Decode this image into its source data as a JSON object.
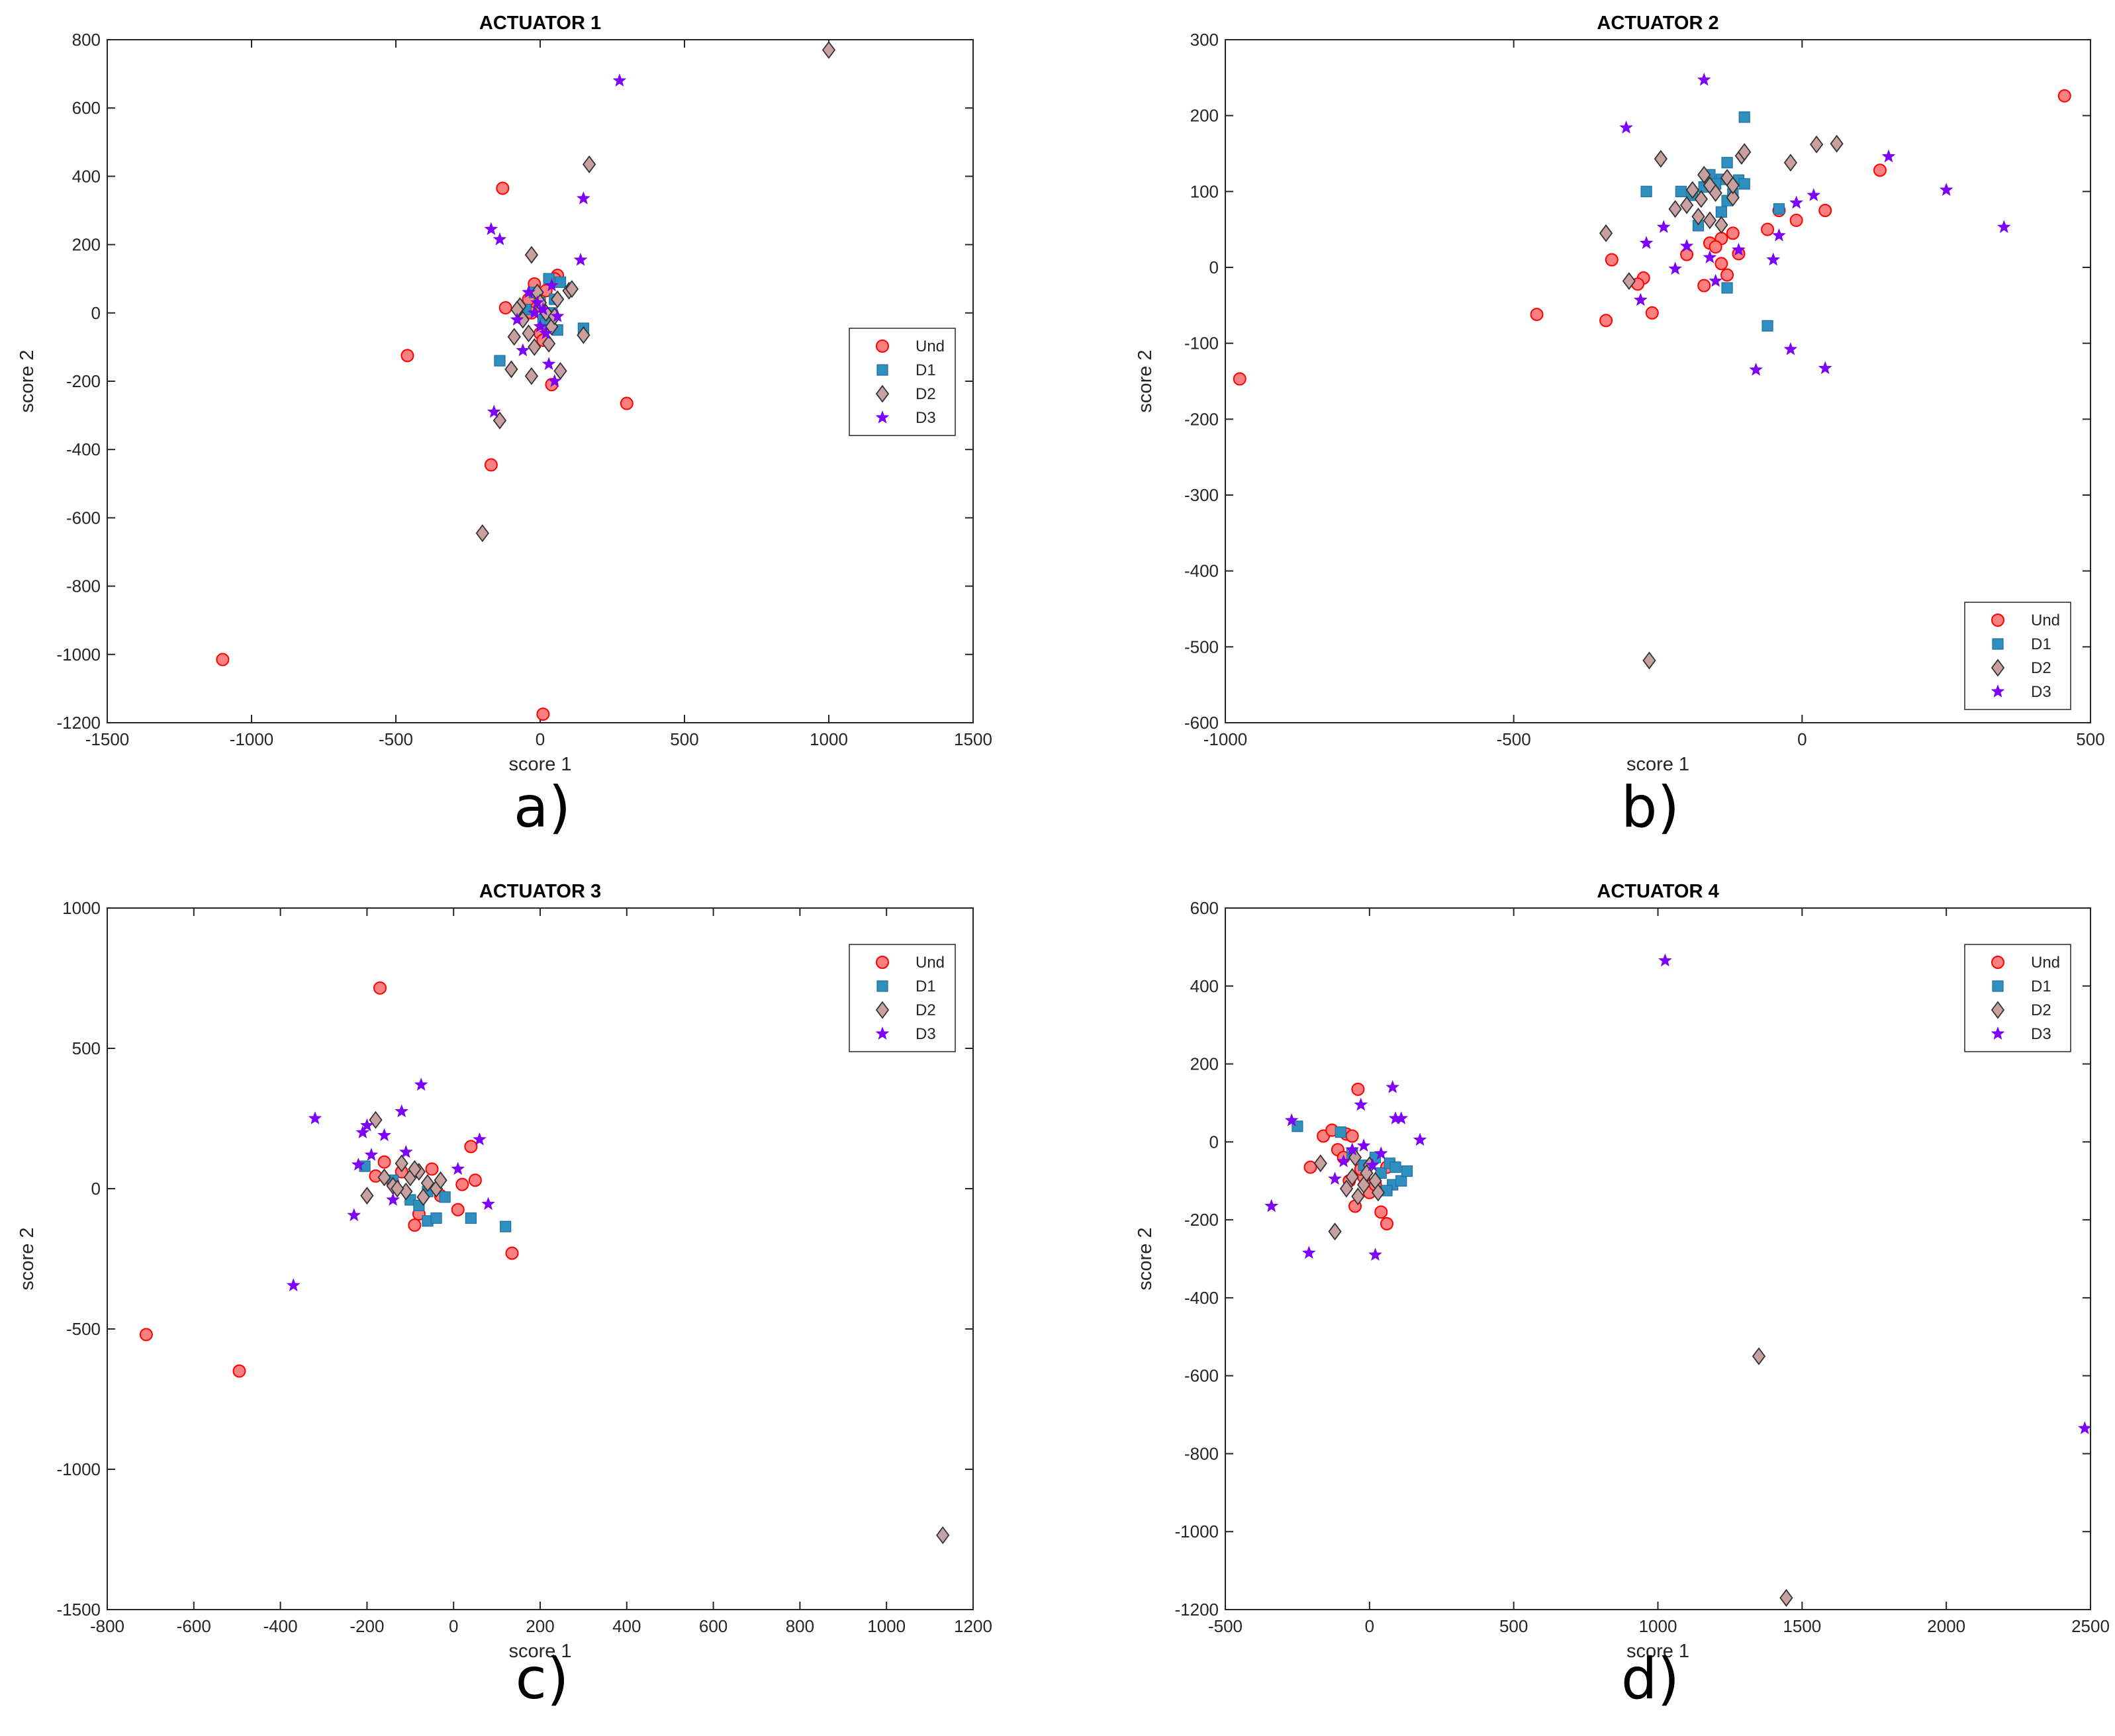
{
  "colors": {
    "Und": {
      "fill": "#ff8080",
      "stroke": "#ff0000"
    },
    "D1": {
      "fill": "#2f8fbf",
      "stroke": "#1f6f9f"
    },
    "D2": {
      "fill": "#c8a0a0",
      "stroke": "#333333"
    },
    "D3": {
      "fill": "#8000ff",
      "stroke": "#7000e0"
    }
  },
  "chart_data": [
    {
      "type": "scatter",
      "title": "ACTUATOR 1",
      "panel_label": "a)",
      "xlabel": "score 1",
      "ylabel": "score 2",
      "xlim": [
        -1500,
        1500
      ],
      "ylim": [
        -1200,
        800
      ],
      "xticks": [
        -1500,
        -1000,
        -500,
        0,
        500,
        1000,
        1500
      ],
      "yticks": [
        -1200,
        -1000,
        -800,
        -600,
        -400,
        -200,
        0,
        200,
        400,
        600,
        800
      ],
      "legend_position": "right-middle",
      "series": [
        {
          "name": "Und",
          "marker": "circle",
          "x": [
            -1100,
            -460,
            -130,
            300,
            -170,
            -120,
            10,
            40,
            60,
            -20,
            20,
            -10,
            30,
            -40,
            0,
            50,
            -30,
            10
          ],
          "y": [
            -1015,
            -125,
            365,
            -265,
            -445,
            15,
            -1175,
            -210,
            110,
            85,
            65,
            20,
            -30,
            40,
            -60,
            100,
            0,
            -80
          ]
        },
        {
          "name": "D1",
          "marker": "square",
          "x": [
            -140,
            30,
            50,
            150,
            60,
            -20,
            10,
            40,
            -50,
            20,
            0,
            70
          ],
          "y": [
            -140,
            100,
            40,
            -45,
            -50,
            60,
            -20,
            0,
            10,
            -30,
            30,
            90
          ]
        },
        {
          "name": "D2",
          "marker": "diamond",
          "x": [
            1000,
            170,
            -200,
            -140,
            -30,
            -30,
            -100,
            70,
            100,
            60,
            150,
            -90,
            -60,
            -20,
            -70,
            20,
            40,
            -10,
            -40,
            0,
            50,
            -80,
            30,
            110
          ],
          "y": [
            770,
            435,
            -645,
            -315,
            -185,
            170,
            -165,
            -170,
            65,
            40,
            -65,
            -70,
            -20,
            -100,
            20,
            0,
            -40,
            60,
            -60,
            30,
            -10,
            10,
            -90,
            70
          ]
        },
        {
          "name": "D3",
          "marker": "star",
          "x": [
            275,
            -170,
            -140,
            150,
            140,
            -160,
            30,
            50,
            -60,
            -10,
            20,
            -40,
            0,
            60,
            -80,
            40,
            -20,
            10
          ],
          "y": [
            680,
            245,
            215,
            335,
            155,
            -290,
            -150,
            -200,
            -110,
            30,
            -60,
            60,
            -40,
            -10,
            -20,
            80,
            0,
            10
          ]
        }
      ]
    },
    {
      "type": "scatter",
      "title": "ACTUATOR 2",
      "panel_label": "b)",
      "xlabel": "score 1",
      "ylabel": "score 2",
      "xlim": [
        -1000,
        500
      ],
      "ylim": [
        -600,
        300
      ],
      "xticks": [
        -1000,
        -500,
        0,
        500
      ],
      "yticks": [
        -600,
        -500,
        -400,
        -300,
        -200,
        -100,
        0,
        100,
        200,
        300
      ],
      "legend_position": "bottom-right",
      "series": [
        {
          "name": "Und",
          "marker": "circle",
          "x": [
            -975,
            -460,
            -340,
            -330,
            -275,
            -285,
            -260,
            -200,
            -170,
            -160,
            -140,
            -130,
            -120,
            -110,
            -140,
            -150,
            -60,
            -40,
            -10,
            40,
            135,
            455
          ],
          "y": [
            -147,
            -62,
            -70,
            10,
            -14,
            -22,
            -60,
            17,
            -24,
            32,
            5,
            -10,
            45,
            18,
            38,
            27,
            50,
            75,
            62,
            75,
            128,
            226
          ]
        },
        {
          "name": "D1",
          "marker": "square",
          "x": [
            -100,
            -270,
            -60,
            -40,
            -130,
            -210,
            -160,
            -140,
            -120,
            -180,
            -150,
            -110,
            -170,
            -130,
            -190,
            -140,
            -100,
            -130
          ],
          "y": [
            198,
            100,
            -77,
            77,
            -27,
            100,
            122,
            116,
            97,
            55,
            110,
            115,
            106,
            138,
            95,
            73,
            110,
            88
          ]
        },
        {
          "name": "D2",
          "marker": "diamond",
          "x": [
            -265,
            -340,
            -300,
            -245,
            -220,
            -190,
            -175,
            -160,
            -150,
            -130,
            -120,
            -105,
            -100,
            25,
            60,
            -20,
            -180,
            -200,
            -140,
            -170,
            -120,
            -160
          ],
          "y": [
            -518,
            45,
            -18,
            143,
            77,
            102,
            90,
            108,
            98,
            118,
            92,
            147,
            152,
            162,
            163,
            138,
            67,
            82,
            56,
            122,
            108,
            62
          ]
        },
        {
          "name": "D3",
          "marker": "star",
          "x": [
            -170,
            -305,
            150,
            250,
            350,
            -20,
            40,
            -80,
            -40,
            -280,
            -240,
            -200,
            -160,
            -110,
            -270,
            20,
            -10,
            -50,
            -150,
            -220
          ],
          "y": [
            247,
            184,
            146,
            102,
            53,
            -108,
            -133,
            -135,
            42,
            -43,
            53,
            28,
            13,
            23,
            32,
            95,
            85,
            10,
            -18,
            -2
          ]
        }
      ]
    },
    {
      "type": "scatter",
      "title": "ACTUATOR 3",
      "panel_label": "c)",
      "xlabel": "score 1",
      "ylabel": "score 2",
      "xlim": [
        -800,
        1200
      ],
      "ylim": [
        -1500,
        1000
      ],
      "xticks": [
        -800,
        -600,
        -400,
        -200,
        0,
        200,
        400,
        600,
        800,
        1000,
        1200
      ],
      "yticks": [
        -1500,
        -1000,
        -500,
        0,
        500,
        1000
      ],
      "legend_position": "top-right",
      "series": [
        {
          "name": "Und",
          "marker": "circle",
          "x": [
            -710,
            -495,
            -170,
            -180,
            -160,
            40,
            50,
            135,
            20,
            10,
            -90,
            -80,
            -50,
            -30,
            -140,
            -120
          ],
          "y": [
            -520,
            -650,
            715,
            45,
            95,
            150,
            30,
            -230,
            15,
            -75,
            -130,
            -90,
            70,
            -25,
            20,
            60
          ]
        },
        {
          "name": "D1",
          "marker": "square",
          "x": [
            -205,
            -60,
            -40,
            40,
            120,
            -100,
            -80,
            -20,
            -140,
            -60
          ],
          "y": [
            80,
            -115,
            -105,
            -105,
            -135,
            -40,
            -60,
            -30,
            30,
            -10
          ]
        },
        {
          "name": "D2",
          "marker": "diamond",
          "x": [
            1130,
            -180,
            -200,
            -120,
            -100,
            -80,
            -60,
            -40,
            -140,
            -110,
            -90,
            -70,
            -30,
            -160,
            -130
          ],
          "y": [
            -1235,
            245,
            -25,
            90,
            40,
            60,
            20,
            0,
            10,
            -10,
            70,
            -30,
            30,
            40,
            0
          ]
        },
        {
          "name": "D3",
          "marker": "star",
          "x": [
            -370,
            -320,
            -230,
            -220,
            -210,
            -200,
            -160,
            -120,
            -75,
            10,
            60,
            80,
            -110,
            -140,
            -190
          ],
          "y": [
            -345,
            250,
            -95,
            85,
            200,
            225,
            190,
            275,
            370,
            70,
            175,
            -55,
            130,
            -40,
            120
          ]
        }
      ]
    },
    {
      "type": "scatter",
      "title": "ACTUATOR 4",
      "panel_label": "d)",
      "xlabel": "score 1",
      "ylabel": "score 2",
      "xlim": [
        -500,
        2500
      ],
      "ylim": [
        -1200,
        600
      ],
      "xticks": [
        -500,
        0,
        500,
        1000,
        1500,
        2000,
        2500
      ],
      "yticks": [
        -1200,
        -1000,
        -800,
        -600,
        -400,
        -200,
        0,
        200,
        400,
        600
      ],
      "legend_position": "top-right",
      "series": [
        {
          "name": "Und",
          "marker": "circle",
          "x": [
            -205,
            -160,
            -130,
            -110,
            -80,
            -60,
            -40,
            -20,
            0,
            40,
            60,
            70,
            -50,
            -90,
            20,
            60,
            -70,
            -30
          ],
          "y": [
            -65,
            15,
            30,
            -20,
            20,
            15,
            135,
            -90,
            -130,
            -180,
            -210,
            -60,
            -165,
            -40,
            -110,
            -65,
            -100,
            -70
          ]
        },
        {
          "name": "D1",
          "marker": "square",
          "x": [
            -250,
            -100,
            -60,
            40,
            80,
            110,
            130,
            60,
            -20,
            20,
            70,
            90
          ],
          "y": [
            40,
            25,
            -30,
            -80,
            -110,
            -100,
            -75,
            -125,
            -60,
            -40,
            -55,
            -65
          ]
        },
        {
          "name": "D2",
          "marker": "diamond",
          "x": [
            1350,
            1445,
            -120,
            -170,
            -60,
            -40,
            -20,
            0,
            20,
            -80,
            -50,
            -10,
            30
          ],
          "y": [
            -550,
            -1170,
            -230,
            -55,
            -90,
            -140,
            -110,
            -60,
            -100,
            -120,
            -40,
            -80,
            -130
          ]
        },
        {
          "name": "D3",
          "marker": "star",
          "x": [
            1025,
            -270,
            -340,
            -210,
            80,
            90,
            110,
            175,
            20,
            2480,
            -120,
            -30,
            40,
            -60,
            -90,
            -20,
            10
          ],
          "y": [
            465,
            55,
            -165,
            -285,
            140,
            60,
            60,
            5,
            -290,
            -735,
            -95,
            95,
            -30,
            -20,
            -50,
            -10,
            -60
          ]
        }
      ]
    }
  ]
}
